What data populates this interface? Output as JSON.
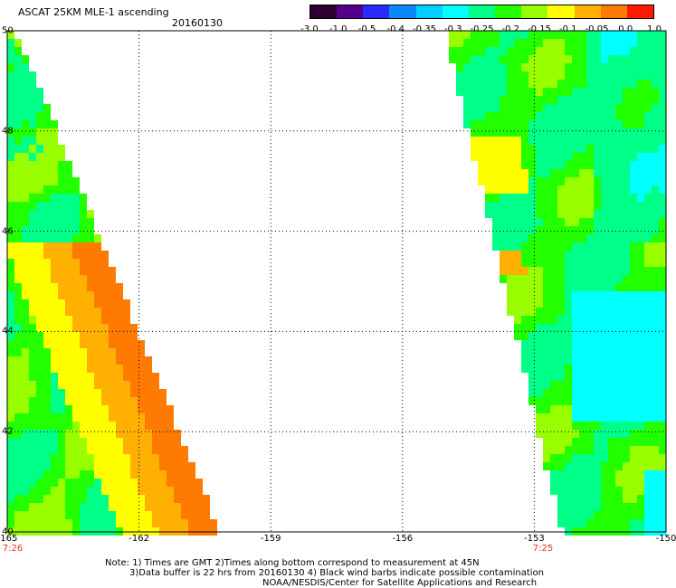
{
  "header": {
    "title": "ASCAT 25KM MLE-1 ascending",
    "date": "20160130"
  },
  "colorbar": {
    "colors": [
      "#2a0030",
      "#54008a",
      "#2a2aff",
      "#0a88ff",
      "#00d0ff",
      "#00ffff",
      "#00ff88",
      "#22ff00",
      "#99ff00",
      "#ffff00",
      "#ffb000",
      "#ff7a00",
      "#ff1a00"
    ],
    "ticks": [
      "-3.0",
      "-1.0",
      "-0.5",
      "-0.4",
      "-0.35",
      "-0.3",
      "-0.25",
      "-0.2",
      "-0.15",
      "-0.1",
      "-0.05",
      "0.0",
      "1.0"
    ]
  },
  "axes": {
    "x_ticks": [
      "-165",
      "-162",
      "-159",
      "-156",
      "-153",
      "-150"
    ],
    "y_ticks": [
      "40",
      "42",
      "44",
      "46",
      "48",
      "50"
    ]
  },
  "times": {
    "left": "7:26",
    "right": "7:25"
  },
  "notes": {
    "line1": "Note: 1) Times are GMT 2)Times along bottom correspond to measurement at 45N",
    "line2": "3)Data buffer is 22 hrs from 20160130 4) Black wind barbs indicate possible contamination",
    "line3": "NOAA/NESDIS/Center for Satellite Applications and Research"
  }
}
